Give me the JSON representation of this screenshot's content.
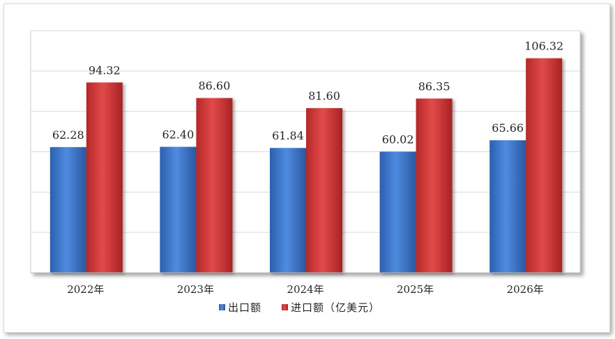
{
  "chart_data": {
    "type": "bar",
    "categories": [
      "2022年",
      "2023年",
      "2024年",
      "2025年",
      "2026年"
    ],
    "series": [
      {
        "name": "出口额",
        "values": [
          62.28,
          62.4,
          61.84,
          60.02,
          65.66
        ],
        "value_labels": [
          "62.28",
          "62.40",
          "61.84",
          "60.02",
          "65.66"
        ],
        "color": "#3a73c4"
      },
      {
        "name": "进口额（亿美元）",
        "values": [
          94.32,
          86.6,
          81.6,
          86.35,
          106.32
        ],
        "value_labels": [
          "94.32",
          "86.60",
          "81.60",
          "86.35",
          "106.32"
        ],
        "color": "#cc3333"
      }
    ],
    "ylim": [
      0,
      120
    ],
    "y_gridlines": [
      20,
      40,
      60,
      80,
      100,
      120
    ],
    "grid": true,
    "legend_position": "bottom"
  }
}
